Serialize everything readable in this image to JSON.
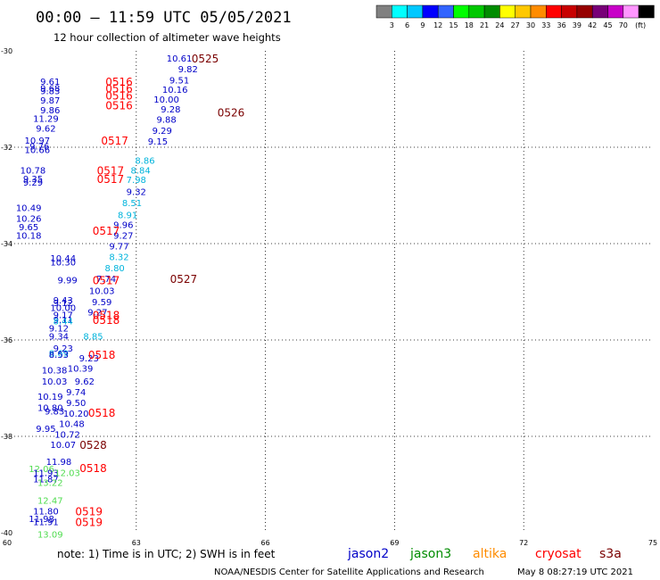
{
  "title": "00:00 – 11:59 UTC 05/05/2021",
  "subtitle": "12 hour collection of altimeter wave heights",
  "colorbar": {
    "colors": [
      "#808080",
      "#00ffff",
      "#00c8ff",
      "#0000ff",
      "#3264ff",
      "#00ff00",
      "#00c800",
      "#008c00",
      "#ffff00",
      "#ffc800",
      "#ff8c00",
      "#ff0000",
      "#c80000",
      "#960000",
      "#780078",
      "#c800c8",
      "#ff96ff",
      "#000000"
    ],
    "labels": [
      "3",
      "6",
      "9",
      "12",
      "15",
      "18",
      "21",
      "24",
      "27",
      "30",
      "33",
      "36",
      "39",
      "42",
      "45",
      "70"
    ],
    "unit": "(ft)"
  },
  "chart_data": {
    "type": "scatter",
    "title": "00:00 – 11:59 UTC 05/05/2021",
    "subtitle": "12 hour collection of altimeter wave heights",
    "xlim": [
      60,
      75
    ],
    "ylim": [
      -40,
      -30
    ],
    "x_ticks": [
      "60",
      "63",
      "66",
      "69",
      "72",
      "75"
    ],
    "y_ticks": [
      "-30",
      "-32",
      "-34",
      "-36",
      "-38",
      "-40"
    ],
    "grid": true,
    "series_colors": {
      "jason2": "#0000c8",
      "jason3": "#008c00",
      "altika": "#ff8c00",
      "cryosat": "#ff0000",
      "s3a": "#7a0000",
      "ice": "#00b4dc",
      "green": "#50dc50"
    },
    "wave_heights": [
      {
        "lon": 64.0,
        "lat": -30.15,
        "value": "10.61",
        "c": "jason2"
      },
      {
        "lon": 64.2,
        "lat": -30.37,
        "value": "9.82",
        "c": "jason2"
      },
      {
        "lon": 64.0,
        "lat": -30.6,
        "value": "9.51",
        "c": "jason2"
      },
      {
        "lon": 63.9,
        "lat": -30.8,
        "value": "10.16",
        "c": "jason2"
      },
      {
        "lon": 63.7,
        "lat": -31.0,
        "value": "10.00",
        "c": "jason2"
      },
      {
        "lon": 63.8,
        "lat": -31.2,
        "value": "9.28",
        "c": "jason2"
      },
      {
        "lon": 63.7,
        "lat": -31.42,
        "value": "9.88",
        "c": "jason2"
      },
      {
        "lon": 63.6,
        "lat": -31.65,
        "value": "9.29",
        "c": "jason2"
      },
      {
        "lon": 63.5,
        "lat": -31.87,
        "value": "9.15",
        "c": "jason2"
      },
      {
        "lon": 61.0,
        "lat": -30.63,
        "value": "9.61",
        "c": "jason2"
      },
      {
        "lon": 61.0,
        "lat": -30.77,
        "value": "9.68",
        "c": "jason2"
      },
      {
        "lon": 61.0,
        "lat": -30.82,
        "value": "9.83",
        "c": "jason2"
      },
      {
        "lon": 61.0,
        "lat": -31.02,
        "value": "9.87",
        "c": "jason2"
      },
      {
        "lon": 61.0,
        "lat": -31.22,
        "value": "9.86",
        "c": "jason2"
      },
      {
        "lon": 60.9,
        "lat": -31.4,
        "value": "11.29",
        "c": "jason2"
      },
      {
        "lon": 60.9,
        "lat": -31.6,
        "value": "9.62",
        "c": "jason2"
      },
      {
        "lon": 60.7,
        "lat": -31.85,
        "value": "10.97",
        "c": "jason2"
      },
      {
        "lon": 60.75,
        "lat": -31.97,
        "value": "9.76",
        "c": "jason2"
      },
      {
        "lon": 60.7,
        "lat": -32.05,
        "value": "10.66",
        "c": "jason2"
      },
      {
        "lon": 60.6,
        "lat": -32.47,
        "value": "10.78",
        "c": "jason2"
      },
      {
        "lon": 60.6,
        "lat": -32.65,
        "value": "9.35",
        "c": "jason2"
      },
      {
        "lon": 60.6,
        "lat": -32.72,
        "value": "9.29",
        "c": "jason2"
      },
      {
        "lon": 63.2,
        "lat": -32.27,
        "value": "8.86",
        "c": "ice"
      },
      {
        "lon": 63.1,
        "lat": -32.47,
        "value": "8.84",
        "c": "ice"
      },
      {
        "lon": 63.0,
        "lat": -32.67,
        "value": "7.98",
        "c": "ice"
      },
      {
        "lon": 63.0,
        "lat": -32.92,
        "value": "9.32",
        "c": "jason2"
      },
      {
        "lon": 62.9,
        "lat": -33.15,
        "value": "8.51",
        "c": "ice"
      },
      {
        "lon": 62.8,
        "lat": -33.4,
        "value": "8.91",
        "c": "ice"
      },
      {
        "lon": 62.7,
        "lat": -33.6,
        "value": "9.96",
        "c": "jason2"
      },
      {
        "lon": 62.7,
        "lat": -33.82,
        "value": "9.27",
        "c": "jason2"
      },
      {
        "lon": 62.6,
        "lat": -34.05,
        "value": "9.77",
        "c": "jason2"
      },
      {
        "lon": 60.5,
        "lat": -33.25,
        "value": "10.49",
        "c": "jason2"
      },
      {
        "lon": 60.5,
        "lat": -33.47,
        "value": "10.26",
        "c": "jason2"
      },
      {
        "lon": 60.5,
        "lat": -33.65,
        "value": "9.65",
        "c": "jason2"
      },
      {
        "lon": 60.5,
        "lat": -33.82,
        "value": "10.18",
        "c": "jason2"
      },
      {
        "lon": 62.6,
        "lat": -34.27,
        "value": "8.32",
        "c": "ice"
      },
      {
        "lon": 62.5,
        "lat": -34.5,
        "value": "8.80",
        "c": "ice"
      },
      {
        "lon": 62.3,
        "lat": -34.72,
        "value": "7.74",
        "c": "jason2"
      },
      {
        "lon": 62.2,
        "lat": -34.97,
        "value": "10.03",
        "c": "jason2"
      },
      {
        "lon": 62.2,
        "lat": -35.2,
        "value": "9.59",
        "c": "jason2"
      },
      {
        "lon": 62.1,
        "lat": -35.42,
        "value": "9.27",
        "c": "jason2"
      },
      {
        "lon": 61.3,
        "lat": -34.3,
        "value": "10.44",
        "c": "jason2"
      },
      {
        "lon": 61.3,
        "lat": -34.38,
        "value": "10.30",
        "c": "jason2"
      },
      {
        "lon": 61.4,
        "lat": -34.75,
        "value": "9.99",
        "c": "jason2"
      },
      {
        "lon": 61.3,
        "lat": -35.17,
        "value": "9.43",
        "c": "jason2"
      },
      {
        "lon": 61.3,
        "lat": -35.22,
        "value": "9.12",
        "c": "jason2"
      },
      {
        "lon": 61.3,
        "lat": -35.32,
        "value": "10.00",
        "c": "jason2"
      },
      {
        "lon": 61.3,
        "lat": -35.47,
        "value": "9.17",
        "c": "jason2"
      },
      {
        "lon": 61.3,
        "lat": -35.57,
        "value": "9.11",
        "c": "jason2"
      },
      {
        "lon": 61.3,
        "lat": -35.6,
        "value": "8.44",
        "c": "ice"
      },
      {
        "lon": 61.2,
        "lat": -35.75,
        "value": "9.12",
        "c": "jason2"
      },
      {
        "lon": 61.2,
        "lat": -35.92,
        "value": "9.34",
        "c": "jason2"
      },
      {
        "lon": 62.0,
        "lat": -35.92,
        "value": "8.85",
        "c": "ice"
      },
      {
        "lon": 61.3,
        "lat": -36.17,
        "value": "9.23",
        "c": "jason2"
      },
      {
        "lon": 61.2,
        "lat": -36.27,
        "value": "8.69",
        "c": "ice"
      },
      {
        "lon": 61.2,
        "lat": -36.3,
        "value": "8.53",
        "c": "jason2"
      },
      {
        "lon": 61.9,
        "lat": -36.37,
        "value": "9.23",
        "c": "jason2"
      },
      {
        "lon": 61.7,
        "lat": -36.58,
        "value": "10.39",
        "c": "jason2"
      },
      {
        "lon": 61.1,
        "lat": -36.62,
        "value": "10.38",
        "c": "jason2"
      },
      {
        "lon": 61.1,
        "lat": -36.85,
        "value": "10.03",
        "c": "jason2"
      },
      {
        "lon": 61.8,
        "lat": -36.85,
        "value": "9.62",
        "c": "jason2"
      },
      {
        "lon": 61.6,
        "lat": -37.07,
        "value": "9.74",
        "c": "jason2"
      },
      {
        "lon": 61.0,
        "lat": -37.17,
        "value": "10.19",
        "c": "jason2"
      },
      {
        "lon": 61.6,
        "lat": -37.3,
        "value": "9.50",
        "c": "jason2"
      },
      {
        "lon": 61.0,
        "lat": -37.4,
        "value": "10.80",
        "c": "jason2"
      },
      {
        "lon": 61.1,
        "lat": -37.47,
        "value": "9.83",
        "c": "jason2"
      },
      {
        "lon": 61.6,
        "lat": -37.52,
        "value": "10.20",
        "c": "jason2"
      },
      {
        "lon": 61.5,
        "lat": -37.73,
        "value": "10.48",
        "c": "jason2"
      },
      {
        "lon": 60.9,
        "lat": -37.83,
        "value": "9.95",
        "c": "jason2"
      },
      {
        "lon": 61.4,
        "lat": -37.95,
        "value": "10.72",
        "c": "jason2"
      },
      {
        "lon": 61.3,
        "lat": -38.17,
        "value": "10.07",
        "c": "jason2"
      },
      {
        "lon": 61.2,
        "lat": -38.52,
        "value": "11.98",
        "c": "jason2"
      },
      {
        "lon": 60.8,
        "lat": -38.67,
        "value": "12.06",
        "c": "green"
      },
      {
        "lon": 60.9,
        "lat": -38.75,
        "value": "11.93",
        "c": "jason2"
      },
      {
        "lon": 61.4,
        "lat": -38.75,
        "value": "12.03",
        "c": "green"
      },
      {
        "lon": 60.9,
        "lat": -38.88,
        "value": "11.87",
        "c": "jason2"
      },
      {
        "lon": 61.0,
        "lat": -38.95,
        "value": "13.22",
        "c": "green"
      },
      {
        "lon": 61.0,
        "lat": -39.32,
        "value": "12.47",
        "c": "green"
      },
      {
        "lon": 60.9,
        "lat": -39.55,
        "value": "11.80",
        "c": "jason2"
      },
      {
        "lon": 60.8,
        "lat": -39.7,
        "value": "11.98",
        "c": "jason2"
      },
      {
        "lon": 60.9,
        "lat": -39.77,
        "value": "11.91",
        "c": "jason2"
      },
      {
        "lon": 61.0,
        "lat": -40.03,
        "value": "13.09",
        "c": "green"
      }
    ],
    "time_labels": [
      {
        "lon": 64.6,
        "lat": -30.15,
        "value": "0525",
        "c": "s3a"
      },
      {
        "lon": 62.6,
        "lat": -30.63,
        "value": "0516",
        "c": "cryosat"
      },
      {
        "lon": 62.6,
        "lat": -30.77,
        "value": "0516",
        "c": "cryosat"
      },
      {
        "lon": 62.6,
        "lat": -30.92,
        "value": "0516",
        "c": "cryosat"
      },
      {
        "lon": 62.6,
        "lat": -31.12,
        "value": "0516",
        "c": "cryosat"
      },
      {
        "lon": 65.2,
        "lat": -31.27,
        "value": "0526",
        "c": "s3a"
      },
      {
        "lon": 62.5,
        "lat": -31.85,
        "value": "0517",
        "c": "cryosat"
      },
      {
        "lon": 62.4,
        "lat": -32.47,
        "value": "0517",
        "c": "cryosat"
      },
      {
        "lon": 62.4,
        "lat": -32.65,
        "value": "0517",
        "c": "cryosat"
      },
      {
        "lon": 62.3,
        "lat": -33.72,
        "value": "0517",
        "c": "cryosat"
      },
      {
        "lon": 64.1,
        "lat": -34.72,
        "value": "0527",
        "c": "s3a"
      },
      {
        "lon": 62.3,
        "lat": -34.75,
        "value": "0517",
        "c": "cryosat"
      },
      {
        "lon": 62.3,
        "lat": -35.47,
        "value": "0518",
        "c": "cryosat"
      },
      {
        "lon": 62.3,
        "lat": -35.57,
        "value": "0518",
        "c": "cryosat"
      },
      {
        "lon": 62.2,
        "lat": -36.3,
        "value": "0518",
        "c": "cryosat"
      },
      {
        "lon": 62.2,
        "lat": -37.5,
        "value": "0518",
        "c": "cryosat"
      },
      {
        "lon": 62.0,
        "lat": -38.17,
        "value": "0528",
        "c": "s3a"
      },
      {
        "lon": 62.0,
        "lat": -38.65,
        "value": "0518",
        "c": "cryosat"
      },
      {
        "lon": 61.9,
        "lat": -39.55,
        "value": "0519",
        "c": "cryosat"
      },
      {
        "lon": 61.9,
        "lat": -39.77,
        "value": "0519",
        "c": "cryosat"
      }
    ]
  },
  "footer": {
    "note": "note:  1) Time is in UTC; 2) SWH is in feet",
    "legend": [
      {
        "name": "jason2",
        "color": "#0000c8"
      },
      {
        "name": "jason3",
        "color": "#008c00"
      },
      {
        "name": "altika",
        "color": "#ff8c00"
      },
      {
        "name": "cryosat",
        "color": "#ff0000"
      },
      {
        "name": "s3a",
        "color": "#7a0000"
      }
    ],
    "credit": "NOAA/NESDIS Center for Satellite Applications and Research",
    "timestamp": "May  8 08:27:19 UTC 2021"
  }
}
